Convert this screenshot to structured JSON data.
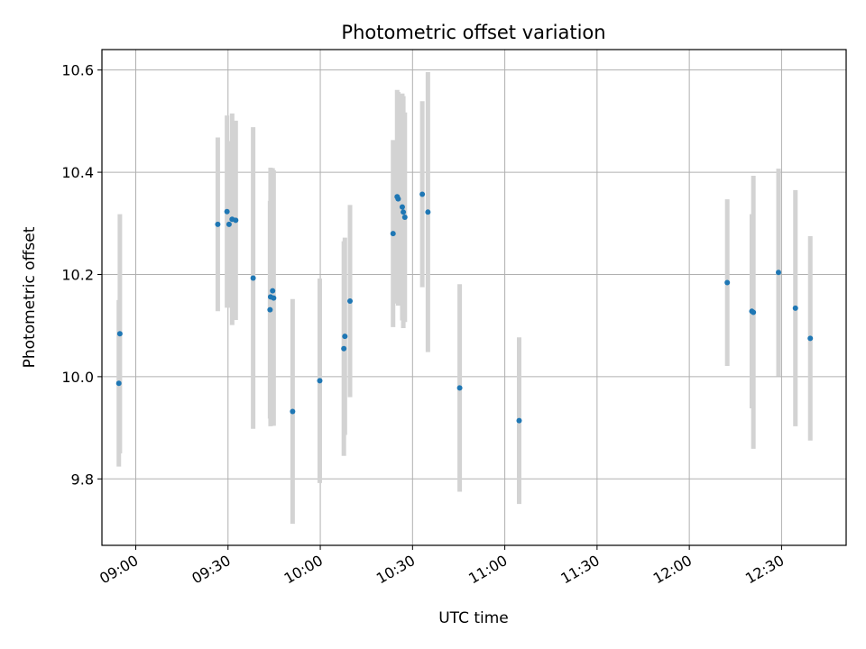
{
  "chart_data": {
    "type": "scatter",
    "title": "Photometric offset variation",
    "xlabel": "UTC time",
    "ylabel": "Photometric offset",
    "xlim": [
      "08:49",
      "12:51"
    ],
    "ylim": [
      9.67,
      10.64
    ],
    "grid": true,
    "x_ticks": [
      "09:00",
      "09:30",
      "10:00",
      "10:30",
      "11:00",
      "11:30",
      "12:00",
      "12:30"
    ],
    "y_ticks": [
      9.8,
      10.0,
      10.2,
      10.4,
      10.6
    ],
    "colors": {
      "marker": "#1f77b4",
      "errorbar": "#d3d3d3"
    },
    "series": [
      {
        "points": [
          {
            "t": "08:54:30",
            "y": 9.987,
            "err": 0.163
          },
          {
            "t": "08:54:50",
            "y": 10.084,
            "err": 0.234
          },
          {
            "t": "09:26:40",
            "y": 10.298,
            "err": 0.17
          },
          {
            "t": "09:29:40",
            "y": 10.323,
            "err": 0.188
          },
          {
            "t": "09:30:20",
            "y": 10.298,
            "err": 0.163
          },
          {
            "t": "09:31:20",
            "y": 10.308,
            "err": 0.207
          },
          {
            "t": "09:32:30",
            "y": 10.306,
            "err": 0.195
          },
          {
            "t": "09:38:10",
            "y": 10.193,
            "err": 0.295
          },
          {
            "t": "09:43:40",
            "y": 10.131,
            "err": 0.213
          },
          {
            "t": "09:43:50",
            "y": 10.156,
            "err": 0.253
          },
          {
            "t": "09:44:30",
            "y": 10.168,
            "err": 0.24
          },
          {
            "t": "09:44:50",
            "y": 10.154,
            "err": 0.25
          },
          {
            "t": "09:51:00",
            "y": 9.932,
            "err": 0.22
          },
          {
            "t": "09:59:50",
            "y": 9.992,
            "err": 0.2
          },
          {
            "t": "10:07:40",
            "y": 10.055,
            "err": 0.21
          },
          {
            "t": "10:08:00",
            "y": 10.079,
            "err": 0.193
          },
          {
            "t": "10:09:40",
            "y": 10.148,
            "err": 0.188
          },
          {
            "t": "10:23:40",
            "y": 10.28,
            "err": 0.183
          },
          {
            "t": "10:25:00",
            "y": 10.352,
            "err": 0.209
          },
          {
            "t": "10:25:20",
            "y": 10.348,
            "err": 0.209
          },
          {
            "t": "10:26:40",
            "y": 10.332,
            "err": 0.222
          },
          {
            "t": "10:27:00",
            "y": 10.322,
            "err": 0.227
          },
          {
            "t": "10:27:30",
            "y": 10.312,
            "err": 0.205
          },
          {
            "t": "10:33:10",
            "y": 10.357,
            "err": 0.182
          },
          {
            "t": "10:35:00",
            "y": 10.322,
            "err": 0.274
          },
          {
            "t": "10:45:20",
            "y": 9.978,
            "err": 0.203
          },
          {
            "t": "11:04:40",
            "y": 9.914,
            "err": 0.163
          },
          {
            "t": "12:12:20",
            "y": 10.184,
            "err": 0.163
          },
          {
            "t": "12:20:20",
            "y": 10.128,
            "err": 0.19
          },
          {
            "t": "12:20:50",
            "y": 10.126,
            "err": 0.267
          },
          {
            "t": "12:29:00",
            "y": 10.204,
            "err": 0.203
          },
          {
            "t": "12:34:30",
            "y": 10.134,
            "err": 0.231
          },
          {
            "t": "12:39:20",
            "y": 10.075,
            "err": 0.2
          }
        ]
      }
    ]
  }
}
